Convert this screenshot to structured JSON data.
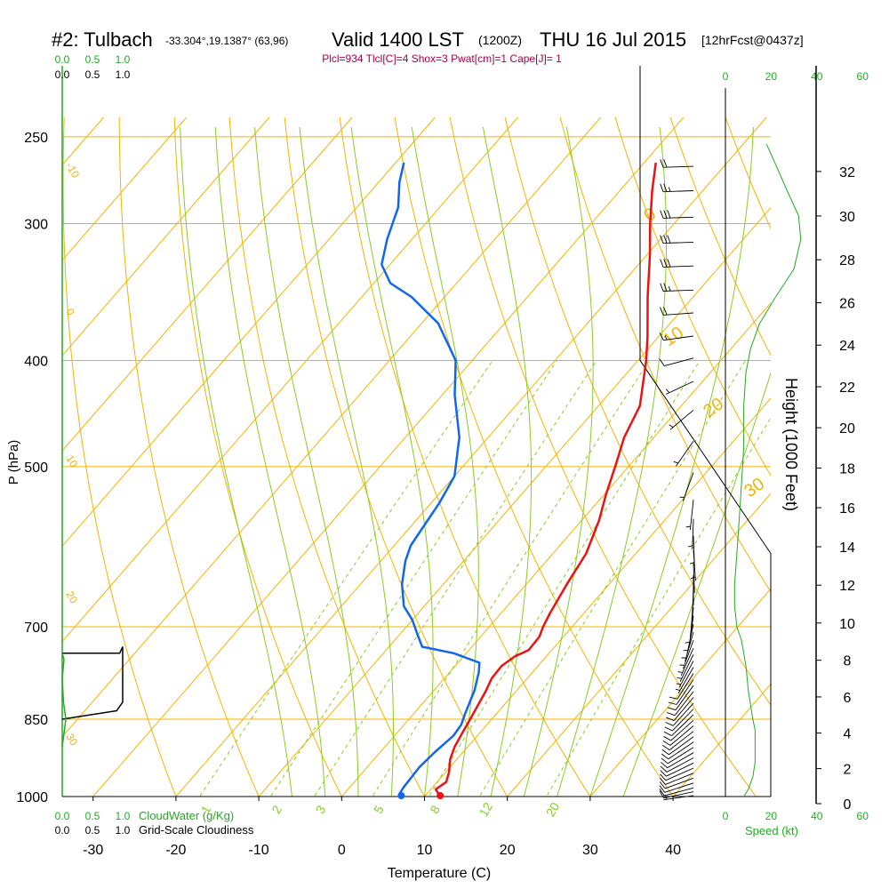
{
  "header": {
    "station": "#2: Tulbach",
    "location": "-33.304°,19.1387° (63,96)",
    "valid": "Valid 1400 LST",
    "zulu": "(1200Z)",
    "date": "THU 16 Jul 2015",
    "forecast": "[12hrFcst@0437z]",
    "params": "Plcl=934 Tlcl[C]=4 Shox=3 Pwat[cm]=1 Cape[J]= 1"
  },
  "colors": {
    "temperature": "#ee1111",
    "dewpoint": "#1166ee",
    "isotherm": "#f0b400",
    "dry_adiabat": "#f0b400",
    "moist_adiabat": "#88cc22",
    "mixing_ratio": "#88cc22",
    "wind_speed": "#22aa22",
    "cloud_water": "#22aa22",
    "cloudiness": "#000000",
    "params_text": "#aa0044"
  },
  "chart_data": {
    "type": "line",
    "subtype": "skew-t log-p sounding",
    "xlabel": "Temperature (C)",
    "ylabel": "P (hPa)",
    "right_label": "Height (1000 Feet)",
    "x_ticks": [
      -30,
      -20,
      -10,
      0,
      10,
      20,
      30,
      40
    ],
    "p_ticks": [
      250,
      300,
      400,
      500,
      700,
      850,
      1000
    ],
    "height_ticks": [
      0,
      2,
      4,
      6,
      8,
      10,
      12,
      14,
      16,
      18,
      20,
      22,
      24,
      26,
      28,
      30,
      32
    ],
    "pressure_range": [
      1000,
      250
    ],
    "x_range": [
      -33,
      35
    ],
    "skew_deg_per_log_unit": 115,
    "series": [
      {
        "name": "Temperature",
        "points": [
          [
            1000,
            11.9
          ],
          [
            985,
            10.6
          ],
          [
            970,
            11.1
          ],
          [
            950,
            10.4
          ],
          [
            925,
            9.2
          ],
          [
            900,
            8.4
          ],
          [
            870,
            7.8
          ],
          [
            850,
            7.4
          ],
          [
            800,
            6.3
          ],
          [
            780,
            5.7
          ],
          [
            760,
            5.6
          ],
          [
            745,
            6.2
          ],
          [
            735,
            7.2
          ],
          [
            715,
            7.1
          ],
          [
            700,
            6.5
          ],
          [
            680,
            5.9
          ],
          [
            640,
            4.9
          ],
          [
            600,
            4.0
          ],
          [
            560,
            2.1
          ],
          [
            530,
            0.2
          ],
          [
            500,
            -1.6
          ],
          [
            470,
            -3.6
          ],
          [
            440,
            -5.0
          ],
          [
            400,
            -9.0
          ],
          [
            380,
            -11.4
          ],
          [
            350,
            -15.5
          ],
          [
            320,
            -19.7
          ],
          [
            300,
            -22.9
          ],
          [
            280,
            -26.1
          ],
          [
            264,
            -28.6
          ]
        ]
      },
      {
        "name": "Dewpoint",
        "points": [
          [
            1000,
            7.2
          ],
          [
            995,
            6.7
          ],
          [
            980,
            6.5
          ],
          [
            940,
            6.3
          ],
          [
            910,
            6.6
          ],
          [
            880,
            7.1
          ],
          [
            860,
            6.9
          ],
          [
            840,
            6.2
          ],
          [
            800,
            4.9
          ],
          [
            770,
            3.5
          ],
          [
            755,
            2.6
          ],
          [
            740,
            -1.5
          ],
          [
            730,
            -6.0
          ],
          [
            710,
            -8.0
          ],
          [
            690,
            -10.0
          ],
          [
            670,
            -12.5
          ],
          [
            640,
            -15.0
          ],
          [
            610,
            -17.0
          ],
          [
            590,
            -18.0
          ],
          [
            540,
            -19.0
          ],
          [
            510,
            -20.0
          ],
          [
            470,
            -23.5
          ],
          [
            430,
            -28.5
          ],
          [
            400,
            -32.0
          ],
          [
            370,
            -38.0
          ],
          [
            350,
            -44.0
          ],
          [
            340,
            -48.0
          ],
          [
            327,
            -51.0
          ],
          [
            310,
            -53.0
          ],
          [
            290,
            -55.0
          ],
          [
            275,
            -57.5
          ],
          [
            264,
            -59.0
          ]
        ]
      }
    ],
    "isotherms": [
      -110,
      -100,
      -90,
      -80,
      -70,
      -60,
      -50,
      -40,
      -30,
      -20,
      -10,
      0,
      10,
      20,
      30,
      40
    ],
    "isotherm_labels": [
      {
        "t": -10,
        "p": 300,
        "text": "-10"
      },
      {
        "t": 0,
        "p": 400,
        "text": "0"
      },
      {
        "t": 10,
        "p": 500,
        "text": "10"
      },
      {
        "t": 20,
        "p": 700,
        "text": "20"
      },
      {
        "t": 30,
        "p": 850,
        "text": "30"
      },
      {
        "t": 0,
        "p": 330,
        "text": "0"
      },
      {
        "t": 10,
        "p": 420,
        "text": "10"
      },
      {
        "t": 20,
        "p": 480,
        "text": "20"
      },
      {
        "t": 30,
        "p": 540,
        "text": "30"
      }
    ],
    "dry_adiabats_theta_c": [
      -20,
      -10,
      0,
      10,
      20,
      30,
      40,
      50,
      60,
      70,
      80,
      90,
      100,
      110,
      120,
      130,
      140
    ],
    "moist_adiabats_thetaw_c": [
      -6,
      -2,
      2,
      6,
      10,
      14,
      18,
      22,
      26,
      30,
      34
    ],
    "mixing_ratios": [
      {
        "w": 1,
        "label": "1"
      },
      {
        "w": 2,
        "label": "2"
      },
      {
        "w": 3,
        "label": "3"
      },
      {
        "w": 5,
        "label": "5"
      },
      {
        "w": 8,
        "label": "8"
      },
      {
        "w": 12,
        "label": "12"
      },
      {
        "w": 20,
        "label": "20"
      }
    ],
    "cloud_water_axis": {
      "label": "CloudWater (g/Kg)",
      "ticks": [
        "0.0",
        "0.5",
        "1.0"
      ]
    },
    "cloudiness_axis": {
      "label": "Grid-Scale Cloudiness",
      "ticks": [
        "0.0",
        "0.5",
        "1.0"
      ]
    },
    "cloudiness_profile": [
      [
        740,
        0.0
      ],
      [
        740,
        0.95
      ],
      [
        730,
        1.0
      ],
      [
        820,
        1.0
      ],
      [
        835,
        0.9
      ],
      [
        850,
        0.0
      ]
    ],
    "cloud_water_profile": [
      [
        740,
        0.0
      ],
      [
        750,
        0.03
      ],
      [
        780,
        0.0
      ],
      [
        820,
        0.02
      ],
      [
        850,
        0.06
      ],
      [
        900,
        0.0
      ]
    ],
    "wind_speed_axis": {
      "label": "Speed (kt)",
      "ticks": [
        "0",
        "20",
        "40",
        "60"
      ]
    },
    "wind_speed_profile": [
      [
        1000,
        8
      ],
      [
        985,
        10
      ],
      [
        960,
        12
      ],
      [
        930,
        13
      ],
      [
        900,
        13
      ],
      [
        870,
        13
      ],
      [
        850,
        12
      ],
      [
        800,
        10
      ],
      [
        760,
        9
      ],
      [
        720,
        7
      ],
      [
        700,
        5
      ],
      [
        670,
        4
      ],
      [
        640,
        4
      ],
      [
        600,
        5
      ],
      [
        560,
        6
      ],
      [
        520,
        7
      ],
      [
        480,
        8
      ],
      [
        440,
        8
      ],
      [
        410,
        9
      ],
      [
        390,
        11
      ],
      [
        370,
        15
      ],
      [
        350,
        22
      ],
      [
        330,
        30
      ],
      [
        310,
        33
      ],
      [
        295,
        32
      ],
      [
        280,
        27
      ],
      [
        265,
        22
      ],
      [
        254,
        18
      ]
    ],
    "wind_barbs": [
      {
        "p": 998,
        "dir": 262,
        "spd": 9
      },
      {
        "p": 990,
        "dir": 258,
        "spd": 10
      },
      {
        "p": 982,
        "dir": 255,
        "spd": 11
      },
      {
        "p": 972,
        "dir": 252,
        "spd": 12
      },
      {
        "p": 962,
        "dir": 250,
        "spd": 12
      },
      {
        "p": 952,
        "dir": 248,
        "spd": 13
      },
      {
        "p": 942,
        "dir": 246,
        "spd": 13
      },
      {
        "p": 932,
        "dir": 244,
        "spd": 13
      },
      {
        "p": 922,
        "dir": 242,
        "spd": 13
      },
      {
        "p": 912,
        "dir": 240,
        "spd": 13
      },
      {
        "p": 902,
        "dir": 238,
        "spd": 13
      },
      {
        "p": 892,
        "dir": 236,
        "spd": 13
      },
      {
        "p": 882,
        "dir": 234,
        "spd": 13
      },
      {
        "p": 872,
        "dir": 232,
        "spd": 13
      },
      {
        "p": 862,
        "dir": 230,
        "spd": 12
      },
      {
        "p": 852,
        "dir": 228,
        "spd": 12
      },
      {
        "p": 842,
        "dir": 226,
        "spd": 12
      },
      {
        "p": 832,
        "dir": 224,
        "spd": 12
      },
      {
        "p": 822,
        "dir": 222,
        "spd": 11
      },
      {
        "p": 812,
        "dir": 220,
        "spd": 11
      },
      {
        "p": 802,
        "dir": 218,
        "spd": 10
      },
      {
        "p": 792,
        "dir": 216,
        "spd": 10
      },
      {
        "p": 782,
        "dir": 214,
        "spd": 10
      },
      {
        "p": 772,
        "dir": 212,
        "spd": 10
      },
      {
        "p": 762,
        "dir": 210,
        "spd": 9
      },
      {
        "p": 752,
        "dir": 208,
        "spd": 9
      },
      {
        "p": 742,
        "dir": 206,
        "spd": 8
      },
      {
        "p": 732,
        "dir": 204,
        "spd": 8
      },
      {
        "p": 720,
        "dir": 200,
        "spd": 7
      },
      {
        "p": 708,
        "dir": 196,
        "spd": 6
      },
      {
        "p": 696,
        "dir": 192,
        "spd": 5
      },
      {
        "p": 684,
        "dir": 188,
        "spd": 5
      },
      {
        "p": 672,
        "dir": 186,
        "spd": 4
      },
      {
        "p": 658,
        "dir": 184,
        "spd": 4
      },
      {
        "p": 644,
        "dir": 182,
        "spd": 4
      },
      {
        "p": 628,
        "dir": 180,
        "spd": 4
      },
      {
        "p": 612,
        "dir": 178,
        "spd": 4
      },
      {
        "p": 596,
        "dir": 176,
        "spd": 5
      },
      {
        "p": 578,
        "dir": 178,
        "spd": 5
      },
      {
        "p": 558,
        "dir": 182,
        "spd": 6
      },
      {
        "p": 536,
        "dir": 186,
        "spd": 7
      },
      {
        "p": 506,
        "dir": 200,
        "spd": 8
      },
      {
        "p": 474,
        "dir": 215,
        "spd": 8
      },
      {
        "p": 444,
        "dir": 230,
        "spd": 8
      },
      {
        "p": 418,
        "dir": 245,
        "spd": 9
      },
      {
        "p": 398,
        "dir": 255,
        "spd": 11
      },
      {
        "p": 380,
        "dir": 262,
        "spd": 15
      },
      {
        "p": 362,
        "dir": 266,
        "spd": 22
      },
      {
        "p": 345,
        "dir": 268,
        "spd": 28
      },
      {
        "p": 328,
        "dir": 268,
        "spd": 32
      },
      {
        "p": 312,
        "dir": 268,
        "spd": 33
      },
      {
        "p": 296,
        "dir": 268,
        "spd": 32
      },
      {
        "p": 280,
        "dir": 268,
        "spd": 28
      },
      {
        "p": 266,
        "dir": 268,
        "spd": 24
      }
    ],
    "surface_temp": 11.9,
    "surface_dewpoint": 7.2
  }
}
